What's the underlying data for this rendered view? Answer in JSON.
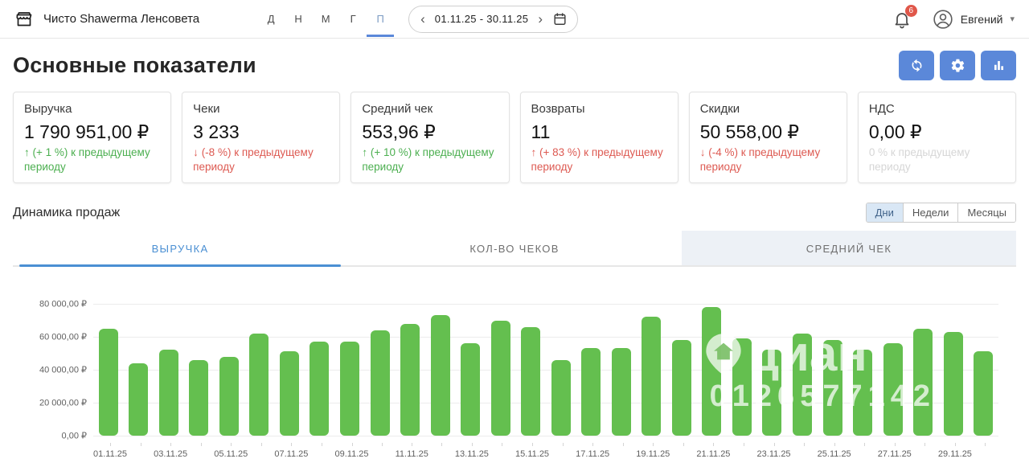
{
  "topbar": {
    "store_name": "Чисто Shawerma Ленсовета",
    "period_shortcuts": [
      "Д",
      "Н",
      "М",
      "Г",
      "П"
    ],
    "active_shortcut": "П",
    "date_range": "01.11.25 - 30.11.25",
    "prev_chevron": "‹",
    "next_chevron": "›",
    "notifications_count": "6",
    "user_name": "Евгений",
    "user_caret": "▾",
    "icons": [
      "storefront-icon",
      "calendar-icon",
      "bell-icon",
      "avatar-icon"
    ]
  },
  "header": {
    "title": "Основные показатели",
    "toolbar_icons": [
      "sync-icon",
      "gear-icon",
      "bar-chart-icon"
    ]
  },
  "kpi_cards": [
    {
      "title": "Выручка",
      "value": "1 790 951,00 ₽",
      "delta_arrow": "↑",
      "delta_text": "(+ 1 %) к предыдущему периоду",
      "sentiment": "positive"
    },
    {
      "title": "Чеки",
      "value": "3 233",
      "delta_arrow": "↓",
      "delta_text": "(-8 %) к предыдущему периоду",
      "sentiment": "negative"
    },
    {
      "title": "Средний чек",
      "value": "553,96 ₽",
      "delta_arrow": "↑",
      "delta_text": "(+ 10 %) к предыдущему периоду",
      "sentiment": "positive"
    },
    {
      "title": "Возвраты",
      "value": "11",
      "delta_arrow": "↑",
      "delta_text": "(+ 83 %) к предыдущему периоду",
      "sentiment": "negative"
    },
    {
      "title": "Скидки",
      "value": "50 558,00 ₽",
      "delta_arrow": "↓",
      "delta_text": "(-4 %) к предыдущему периоду",
      "sentiment": "negative"
    },
    {
      "title": "НДС",
      "value": "0,00 ₽",
      "delta_arrow": "",
      "delta_text": "0 % к предыдущему периоду",
      "sentiment": "neutral"
    }
  ],
  "sales": {
    "title": "Динамика продаж",
    "granularity": [
      "Дни",
      "Недели",
      "Месяцы"
    ],
    "active_granularity": "Дни",
    "tabs": [
      {
        "label": "ВЫРУЧКА",
        "state": "active"
      },
      {
        "label": "КОЛ-ВО ЧЕКОВ",
        "state": "normal"
      },
      {
        "label": "СРЕДНИЙ ЧЕК",
        "state": "hover"
      }
    ]
  },
  "chart_data": {
    "type": "bar",
    "title": "Динамика продаж — Выручка (Дни)",
    "x": [
      "01.11.25",
      "02.11.25",
      "03.11.25",
      "04.11.25",
      "05.11.25",
      "06.11.25",
      "07.11.25",
      "08.11.25",
      "09.11.25",
      "10.11.25",
      "11.11.25",
      "12.11.25",
      "13.11.25",
      "14.11.25",
      "15.11.25",
      "16.11.25",
      "17.11.25",
      "18.11.25",
      "19.11.25",
      "20.11.25",
      "21.11.25",
      "22.11.25",
      "23.11.25",
      "24.11.25",
      "25.11.25",
      "26.11.25",
      "27.11.25",
      "28.11.25",
      "29.11.25",
      "30.11.25"
    ],
    "values": [
      65000,
      44000,
      52000,
      46000,
      48000,
      62000,
      51000,
      57000,
      57000,
      64000,
      68000,
      73000,
      56000,
      70000,
      66000,
      46000,
      53000,
      53000,
      72000,
      58000,
      78000,
      59000,
      52000,
      62000,
      58000,
      52000,
      56000,
      65000,
      63000,
      51000
    ],
    "x_label_every": 2,
    "ylim": [
      0,
      80000
    ],
    "yticks": [
      {
        "label": "80 000,00 ₽",
        "value": 80000
      },
      {
        "label": "60 000,00 ₽",
        "value": 60000
      },
      {
        "label": "40 000,00 ₽",
        "value": 40000
      },
      {
        "label": "20 000,00 ₽",
        "value": 20000
      },
      {
        "label": "0,00 ₽",
        "value": 0
      }
    ],
    "grid": true,
    "legend": false,
    "bar_color": "#64bf4f"
  },
  "watermark": {
    "logo_text": "циан",
    "id_text": "0126577142",
    "icon": "house-pin-icon"
  },
  "colors": {
    "accent_blue": "#5b88d9",
    "tab_blue": "#4a8fd3",
    "positive_green": "#4caf50",
    "negative_red": "#dd5a52",
    "neutral_gray": "#d6d6d6",
    "bar_green": "#64bf4f",
    "badge_red": "#e0574a"
  }
}
